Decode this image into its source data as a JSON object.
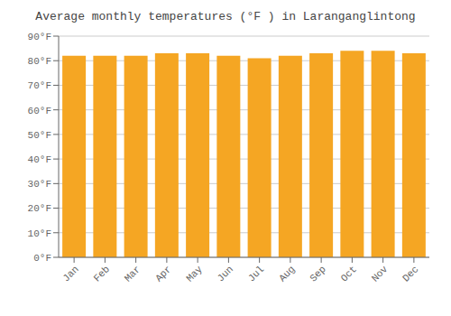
{
  "chart_data": {
    "type": "bar",
    "title": "Average monthly temperatures (°F ) in Laranganglintong",
    "categories": [
      "Jan",
      "Feb",
      "Mar",
      "Apr",
      "May",
      "Jun",
      "Jul",
      "Aug",
      "Sep",
      "Oct",
      "Nov",
      "Dec"
    ],
    "values": [
      82,
      82,
      82,
      83,
      83,
      82,
      81,
      82,
      83,
      84,
      84,
      83
    ],
    "color": "#F5A623",
    "ylim": [
      0,
      90
    ],
    "yticks": [
      {
        "value": 0,
        "label": "0°F"
      },
      {
        "value": 10,
        "label": "10°F"
      },
      {
        "value": 20,
        "label": "20°F"
      },
      {
        "value": 30,
        "label": "30°F"
      },
      {
        "value": 40,
        "label": "40°F"
      },
      {
        "value": 50,
        "label": "50°F"
      },
      {
        "value": 60,
        "label": "60°F"
      },
      {
        "value": 70,
        "label": "70°F"
      },
      {
        "value": 80,
        "label": "80°F"
      },
      {
        "value": 90,
        "label": "90°F"
      }
    ],
    "grid": true
  }
}
